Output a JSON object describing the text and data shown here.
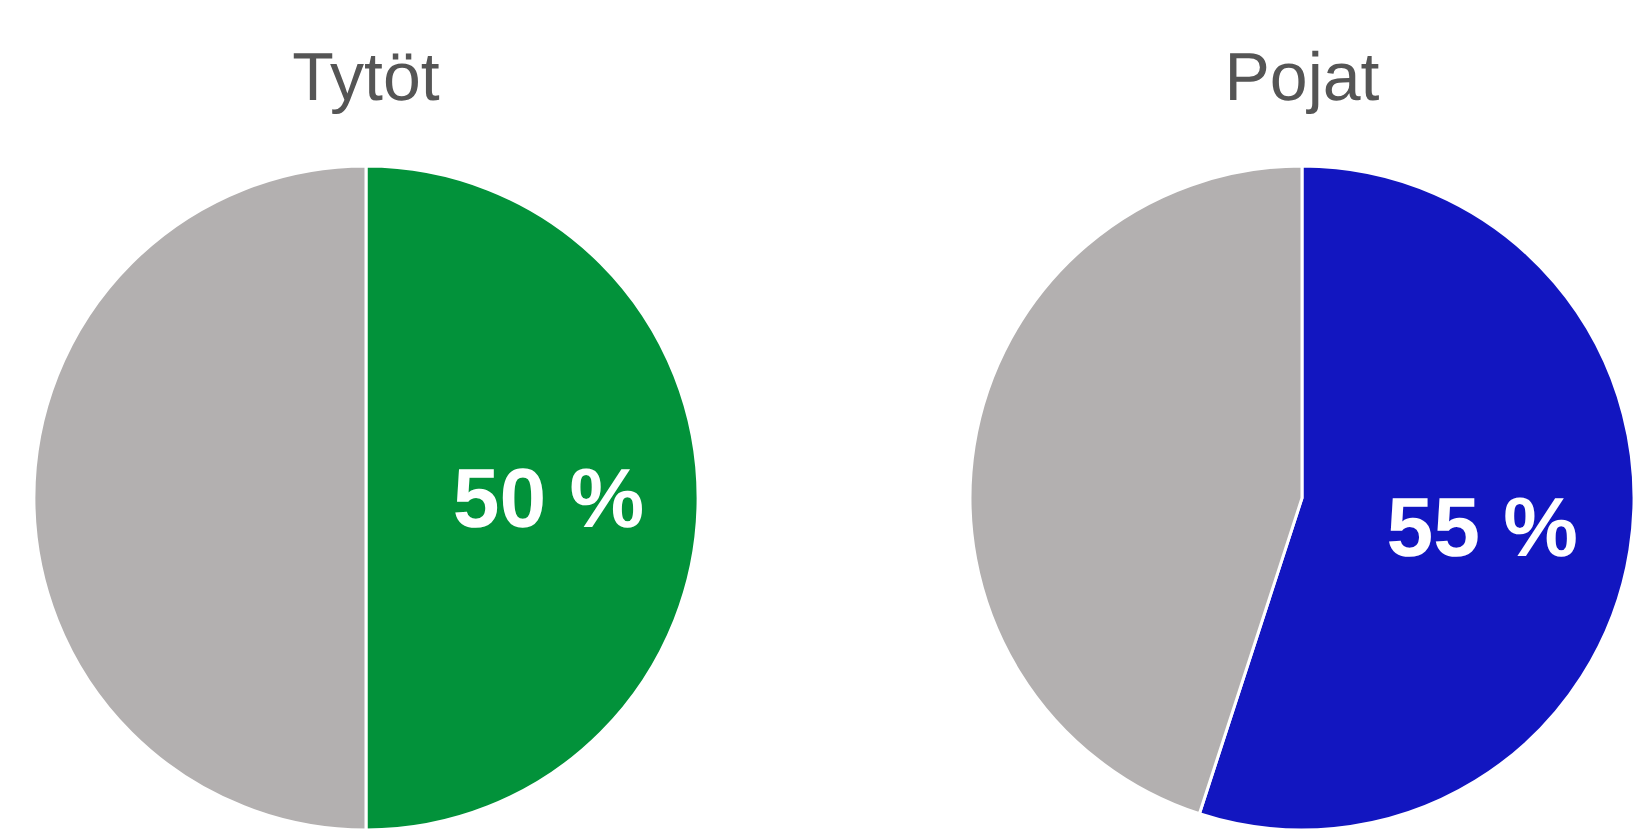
{
  "chart_data": [
    {
      "type": "pie",
      "title": "Tytöt",
      "categories": [
        null,
        null
      ],
      "values": [
        50,
        50
      ],
      "colors": [
        "#02923a",
        "#b3b0b0"
      ],
      "value_labels": [
        "50 %",
        null
      ]
    },
    {
      "type": "pie",
      "title": "Pojat",
      "categories": [
        null,
        null
      ],
      "values": [
        55,
        45
      ],
      "colors": [
        "#1216c0",
        "#b3b0b0"
      ],
      "value_labels": [
        "55 %",
        null
      ]
    }
  ]
}
